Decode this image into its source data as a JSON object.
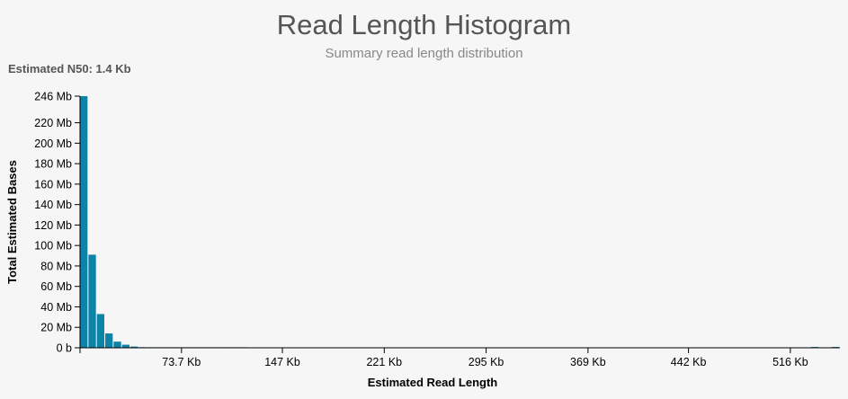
{
  "header": {
    "title": "Read Length Histogram",
    "subtitle": "Summary read length distribution",
    "n50_label": "Estimated N50: 1.4 Kb"
  },
  "colors": {
    "bar": "#0e83a8",
    "axis": "#000000",
    "title": "#555555",
    "subtitle": "#888888",
    "background": "#f6f6f6"
  },
  "chart_data": {
    "type": "bar",
    "title": "Read Length Histogram",
    "subtitle": "Summary read length distribution",
    "xlabel": "Estimated Read Length",
    "ylabel": "Total Estimated Bases",
    "xlim": [
      0,
      552
    ],
    "x_unit": "Kb",
    "ylim": [
      0,
      246
    ],
    "y_unit": "Mb",
    "yticks": [
      {
        "value": 0,
        "label": "0 b"
      },
      {
        "value": 20,
        "label": "20 Mb"
      },
      {
        "value": 40,
        "label": "40 Mb"
      },
      {
        "value": 60,
        "label": "60 Mb"
      },
      {
        "value": 80,
        "label": "80 Mb"
      },
      {
        "value": 100,
        "label": "100 Mb"
      },
      {
        "value": 120,
        "label": "120 Mb"
      },
      {
        "value": 140,
        "label": "140 Mb"
      },
      {
        "value": 160,
        "label": "160 Mb"
      },
      {
        "value": 180,
        "label": "180 Mb"
      },
      {
        "value": 200,
        "label": "200 Mb"
      },
      {
        "value": 220,
        "label": "220 Mb"
      },
      {
        "value": 246,
        "label": "246 Mb"
      }
    ],
    "xticks": [
      {
        "value": 73.7,
        "label": "73.7 Kb"
      },
      {
        "value": 147,
        "label": "147 Kb"
      },
      {
        "value": 221,
        "label": "221 Kb"
      },
      {
        "value": 295,
        "label": "295 Kb"
      },
      {
        "value": 369,
        "label": "369 Kb"
      },
      {
        "value": 442,
        "label": "442 Kb"
      },
      {
        "value": 516,
        "label": "516 Kb"
      }
    ],
    "bin_width_kb": 6.1,
    "bins": [
      {
        "x": 0,
        "value": 246
      },
      {
        "x": 6.1,
        "value": 91
      },
      {
        "x": 12.2,
        "value": 33
      },
      {
        "x": 18.3,
        "value": 14
      },
      {
        "x": 24.4,
        "value": 6
      },
      {
        "x": 30.5,
        "value": 3
      },
      {
        "x": 36.6,
        "value": 1.2
      },
      {
        "x": 42.7,
        "value": 0.6
      },
      {
        "x": 48.8,
        "value": 0.3
      },
      {
        "x": 54.9,
        "value": 0.2
      },
      {
        "x": 61.0,
        "value": 0.15
      },
      {
        "x": 67.1,
        "value": 0.1
      },
      {
        "x": 73.2,
        "value": 0.1
      },
      {
        "x": 79.3,
        "value": 0.08
      },
      {
        "x": 85.4,
        "value": 0.06
      },
      {
        "x": 91.5,
        "value": 0.05
      },
      {
        "x": 97.6,
        "value": 0.04
      },
      {
        "x": 103.7,
        "value": 0.03
      },
      {
        "x": 109.8,
        "value": 0.03
      },
      {
        "x": 115.9,
        "value": 0.02
      },
      {
        "x": 531,
        "value": 0.8
      },
      {
        "x": 546,
        "value": 0.8
      }
    ]
  }
}
